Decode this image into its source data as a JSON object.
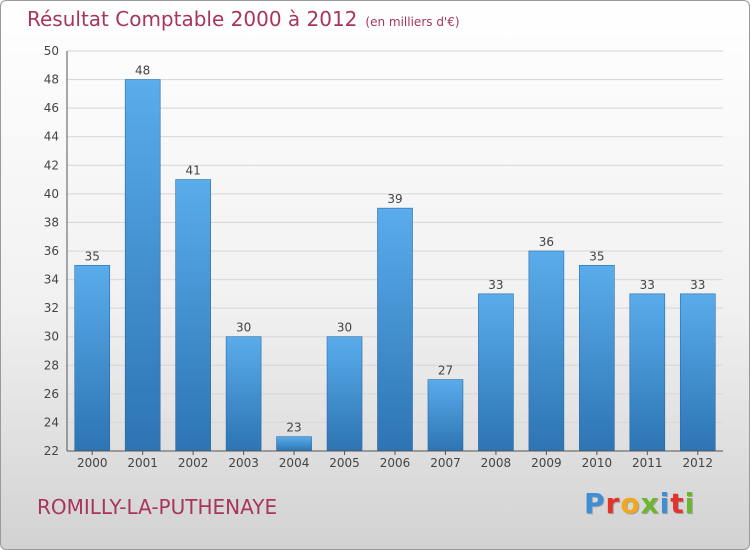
{
  "chart_data": {
    "type": "bar",
    "title": "Résultat Comptable 2000 à 2012",
    "subtitle": "(en milliers d'€)",
    "categories": [
      "2000",
      "2001",
      "2002",
      "2003",
      "2004",
      "2005",
      "2006",
      "2007",
      "2008",
      "2009",
      "2010",
      "2011",
      "2012"
    ],
    "values": [
      35,
      48,
      41,
      30,
      23,
      30,
      39,
      27,
      33,
      36,
      35,
      33,
      33
    ],
    "ylim": [
      22,
      50
    ],
    "yticks": [
      22,
      24,
      26,
      28,
      30,
      32,
      34,
      36,
      38,
      40,
      42,
      44,
      46,
      48,
      50
    ],
    "grid": true,
    "bar_color": "#3f93d6"
  },
  "footer": {
    "commune": "ROMILLY-LA-PUTHENAYE",
    "logo_text": "Proxiti",
    "logo_colors": [
      "#3f8ed4",
      "#e2332c",
      "#f2a81d",
      "#6cb62f",
      "#3f8ed4",
      "#e2332c",
      "#6cb62f"
    ]
  }
}
